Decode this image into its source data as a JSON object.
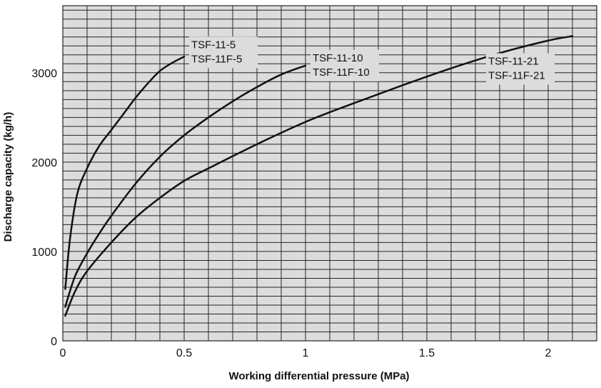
{
  "chart_data": {
    "type": "line",
    "title": "",
    "xlabel": "Working differential pressure (MPa)",
    "ylabel": "Discharge capacity (kg/h)",
    "xlim": [
      0,
      2.2
    ],
    "ylim": [
      0,
      3750
    ],
    "x_ticks": [
      {
        "value": 0,
        "label": "0"
      },
      {
        "value": 0.5,
        "label": "0.5"
      },
      {
        "value": 1,
        "label": "1"
      },
      {
        "value": 1.5,
        "label": "1.5"
      },
      {
        "value": 2,
        "label": "2"
      }
    ],
    "y_ticks": [
      {
        "value": 0,
        "label": "0"
      },
      {
        "value": 1000,
        "label": "1000"
      },
      {
        "value": 2000,
        "label": "2000"
      },
      {
        "value": 3000,
        "label": "3000"
      }
    ],
    "grid": true,
    "colors": {
      "plot_background": "#dcdcdc",
      "grid_line": "#262626",
      "curve": "#111111",
      "text": "#111111"
    },
    "series": [
      {
        "name": "TSF-11-5 / TSF-11F-5",
        "label_lines": [
          "TSF-11-5",
          "TSF-11F-5"
        ],
        "x": [
          0.01,
          0.03,
          0.06,
          0.1,
          0.15,
          0.2,
          0.25,
          0.3,
          0.35,
          0.4,
          0.45,
          0.5
        ],
        "y": [
          580,
          1150,
          1650,
          1930,
          2180,
          2360,
          2540,
          2720,
          2880,
          3020,
          3110,
          3180
        ]
      },
      {
        "name": "TSF-11-10 / TSF-11F-10",
        "label_lines": [
          "TSF-11-10",
          "TSF-11F-10"
        ],
        "x": [
          0.01,
          0.05,
          0.1,
          0.15,
          0.2,
          0.3,
          0.4,
          0.5,
          0.6,
          0.7,
          0.8,
          0.9,
          1.0
        ],
        "y": [
          380,
          720,
          980,
          1200,
          1400,
          1760,
          2060,
          2300,
          2500,
          2680,
          2840,
          2980,
          3080
        ]
      },
      {
        "name": "TSF-11-21 / TSF-11F-21",
        "label_lines": [
          "TSF-11-21",
          "TSF-11F-21"
        ],
        "x": [
          0.01,
          0.05,
          0.1,
          0.2,
          0.3,
          0.4,
          0.5,
          0.6,
          0.8,
          1.0,
          1.2,
          1.4,
          1.6,
          1.8,
          2.0,
          2.1
        ],
        "y": [
          280,
          550,
          780,
          1100,
          1380,
          1600,
          1790,
          1930,
          2200,
          2450,
          2660,
          2860,
          3050,
          3220,
          3360,
          3410
        ]
      }
    ]
  }
}
